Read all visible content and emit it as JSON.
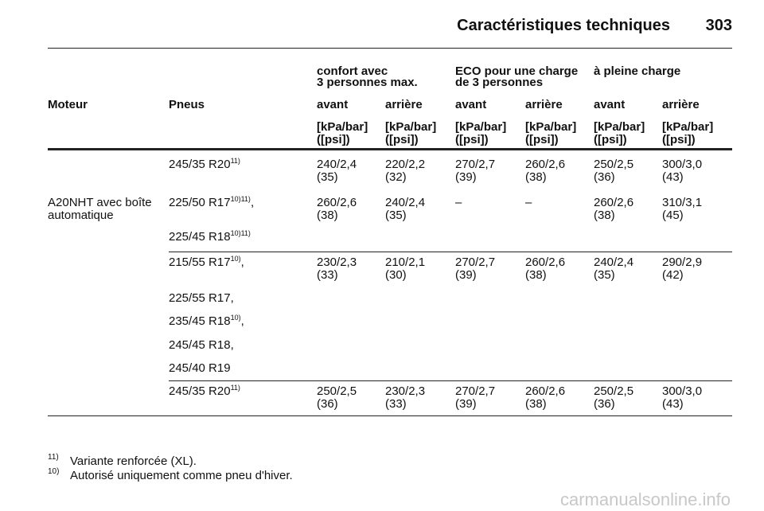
{
  "header": {
    "title": "Caractéristiques techniques",
    "page": "303"
  },
  "columns": {
    "groups": [
      {
        "lines": [
          "confort avec",
          "3 personnes max."
        ]
      },
      {
        "lines": [
          "ECO pour une charge",
          "de 3 personnes"
        ]
      },
      {
        "lines": [
          "à pleine charge"
        ]
      }
    ],
    "moteur": "Moteur",
    "pneus": "Pneus",
    "positions": [
      "avant",
      "arrière",
      "avant",
      "arrière",
      "avant",
      "arrière"
    ],
    "units": [
      {
        "kpa": "[kPa/bar]",
        "psi": "([psi])"
      },
      {
        "kpa": "[kPa/bar]",
        "psi": "([psi])"
      },
      {
        "kpa": "[kPa/bar]",
        "psi": "([psi])"
      },
      {
        "kpa": "[kPa/bar]",
        "psi": "([psi])"
      },
      {
        "kpa": "[kPa/bar]",
        "psi": "([psi])"
      },
      {
        "kpa": "[kPa/bar]",
        "psi": "([psi])"
      }
    ]
  },
  "moteur": [
    "A20NHT avec boîte",
    "automatique"
  ],
  "sections": [
    {
      "tires": [
        {
          "name": "245/35 R20",
          "sup": "11)",
          "values": [
            {
              "value": "240/2,4",
              "psi": "(35)"
            },
            {
              "value": "220/2,2",
              "psi": "(32)"
            },
            {
              "value": "270/2,7",
              "psi": "(39)"
            },
            {
              "value": "260/2,6",
              "psi": "(38)"
            },
            {
              "value": "250/2,5",
              "psi": "(36)"
            },
            {
              "value": "300/3,0",
              "psi": "(43)"
            }
          ]
        },
        {
          "name": "225/50 R17",
          "sup": "10)11)",
          "suffix": ",",
          "values": [
            {
              "value": "260/2,6",
              "psi": "(38)"
            },
            {
              "value": "240/2,4",
              "psi": "(35)"
            },
            "–",
            "–",
            {
              "value": "260/2,6",
              "psi": "(38)"
            },
            {
              "value": "310/3,1",
              "psi": "(45)"
            }
          ]
        },
        {
          "name": "225/45 R18",
          "sup": "10)11)"
        }
      ]
    },
    {
      "tires": [
        {
          "name": "215/55 R17",
          "sup": "10)",
          "suffix": ",",
          "values": [
            {
              "value": "230/2,3",
              "psi": "(33)"
            },
            {
              "value": "210/2,1",
              "psi": "(30)"
            },
            {
              "value": "270/2,7",
              "psi": "(39)"
            },
            {
              "value": "260/2,6",
              "psi": "(38)"
            },
            {
              "value": "240/2,4",
              "psi": "(35)"
            },
            {
              "value": "290/2,9",
              "psi": "(42)"
            }
          ]
        },
        {
          "name": "225/55 R17,"
        },
        {
          "name": "235/45 R18",
          "sup": "10)",
          "suffix": ","
        },
        {
          "name": "245/45 R18,"
        },
        {
          "name": "245/40 R19"
        }
      ]
    },
    {
      "tires": [
        {
          "name": "245/35 R20",
          "sup": "11)",
          "values": [
            {
              "value": "250/2,5",
              "psi": "(36)"
            },
            {
              "value": "230/2,3",
              "psi": "(33)"
            },
            {
              "value": "270/2,7",
              "psi": "(39)"
            },
            {
              "value": "260/2,6",
              "psi": "(38)"
            },
            {
              "value": "250/2,5",
              "psi": "(36)"
            },
            {
              "value": "300/3,0",
              "psi": "(43)"
            }
          ]
        }
      ]
    }
  ],
  "footnotes": [
    {
      "mark": "11)",
      "text": "Variante renforcée (XL)."
    },
    {
      "mark": "10)",
      "text": "Autorisé uniquement comme pneu d'hiver."
    }
  ],
  "watermark": "carmanualsonline.info"
}
